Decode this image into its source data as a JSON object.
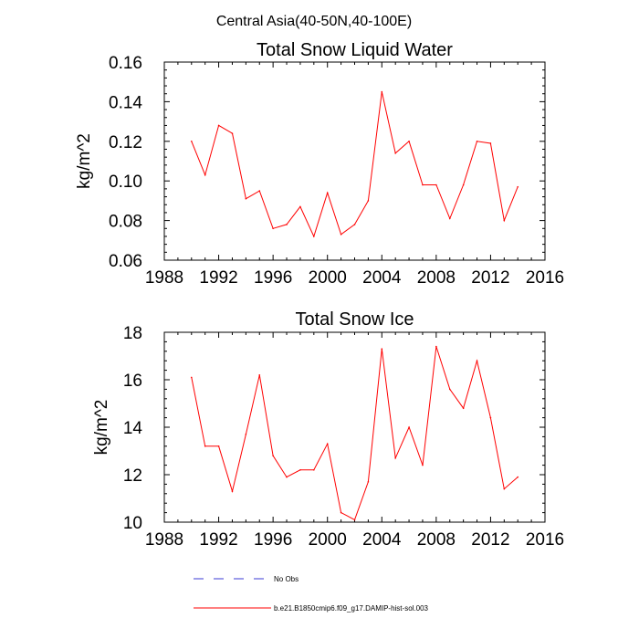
{
  "suptitle": "Central Asia(40-50N,40-100E)",
  "legend": {
    "placement": "bottom",
    "entries": [
      {
        "label": "No Obs",
        "color": "#3b3bd6",
        "style": "dashed"
      },
      {
        "label": "b.e21.B1850cmip6.f09_g17.DAMIP-hist-sol.003",
        "color": "#ff0000",
        "style": "solid"
      }
    ]
  },
  "chart_data": [
    {
      "type": "line",
      "title": "Total Snow Liquid Water",
      "xlabel": "",
      "ylabel": "kg/m^2",
      "xlim": [
        1988,
        2016
      ],
      "ylim": [
        0.06,
        0.16
      ],
      "xticks": [
        1988,
        1992,
        1996,
        2000,
        2004,
        2008,
        2012,
        2016
      ],
      "xtick_labels": [
        "1988",
        "1992",
        "1996",
        "2000",
        "2004",
        "2008",
        "2012",
        "2016"
      ],
      "yticks": [
        0.06,
        0.08,
        0.1,
        0.12,
        0.14,
        0.16
      ],
      "ytick_labels": [
        "0.06",
        "0.08",
        "0.10",
        "0.12",
        "0.14",
        "0.16"
      ],
      "grid": false,
      "x": [
        1990,
        1991,
        1992,
        1993,
        1994,
        1995,
        1996,
        1997,
        1998,
        1999,
        2000,
        2001,
        2002,
        2003,
        2004,
        2005,
        2006,
        2007,
        2008,
        2009,
        2010,
        2011,
        2012,
        2013,
        2014
      ],
      "series": [
        {
          "name": "b.e21.B1850cmip6.f09_g17.DAMIP-hist-sol.003",
          "color": "#ff0000",
          "values": [
            0.12,
            0.103,
            0.128,
            0.124,
            0.091,
            0.095,
            0.076,
            0.078,
            0.087,
            0.072,
            0.094,
            0.073,
            0.078,
            0.09,
            0.145,
            0.114,
            0.12,
            0.098,
            0.098,
            0.081,
            0.098,
            0.12,
            0.119,
            0.08,
            0.097
          ]
        }
      ]
    },
    {
      "type": "line",
      "title": "Total Snow Ice",
      "xlabel": "",
      "ylabel": "kg/m^2",
      "xlim": [
        1988,
        2016
      ],
      "ylim": [
        10,
        18
      ],
      "xticks": [
        1988,
        1992,
        1996,
        2000,
        2004,
        2008,
        2012,
        2016
      ],
      "xtick_labels": [
        "1988",
        "1992",
        "1996",
        "2000",
        "2004",
        "2008",
        "2012",
        "2016"
      ],
      "yticks": [
        10,
        12,
        14,
        16,
        18
      ],
      "ytick_labels": [
        "10",
        "12",
        "14",
        "16",
        "18"
      ],
      "grid": false,
      "x": [
        1990,
        1991,
        1992,
        1993,
        1994,
        1995,
        1996,
        1997,
        1998,
        1999,
        2000,
        2001,
        2002,
        2003,
        2004,
        2005,
        2006,
        2007,
        2008,
        2009,
        2010,
        2011,
        2012,
        2013,
        2014
      ],
      "series": [
        {
          "name": "b.e21.B1850cmip6.f09_g17.DAMIP-hist-sol.003",
          "color": "#ff0000",
          "values": [
            16.1,
            13.2,
            13.2,
            11.3,
            13.7,
            16.2,
            12.8,
            11.9,
            12.2,
            12.2,
            13.3,
            10.4,
            10.1,
            11.7,
            17.3,
            12.7,
            14.0,
            12.4,
            17.4,
            15.6,
            14.8,
            16.8,
            14.4,
            11.4,
            11.9
          ]
        }
      ]
    }
  ]
}
